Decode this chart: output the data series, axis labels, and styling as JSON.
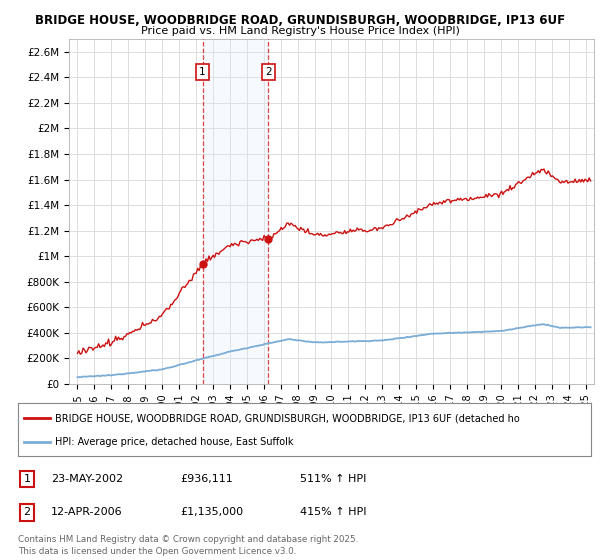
{
  "title_line1": "BRIDGE HOUSE, WOODBRIDGE ROAD, GRUNDISBURGH, WOODBRIDGE, IP13 6UF",
  "title_line2": "Price paid vs. HM Land Registry's House Price Index (HPI)",
  "ylabel_ticks": [
    "£0",
    "£200K",
    "£400K",
    "£600K",
    "£800K",
    "£1M",
    "£1.2M",
    "£1.4M",
    "£1.6M",
    "£1.8M",
    "£2M",
    "£2.2M",
    "£2.4M",
    "£2.6M"
  ],
  "ytick_values": [
    0,
    200000,
    400000,
    600000,
    800000,
    1000000,
    1200000,
    1400000,
    1600000,
    1800000,
    2000000,
    2200000,
    2400000,
    2600000
  ],
  "ylim": [
    0,
    2700000
  ],
  "xlim_start": 1994.5,
  "xlim_end": 2025.5,
  "xtick_years": [
    1995,
    1996,
    1997,
    1998,
    1999,
    2000,
    2001,
    2002,
    2003,
    2004,
    2005,
    2006,
    2007,
    2008,
    2009,
    2010,
    2011,
    2012,
    2013,
    2014,
    2015,
    2016,
    2017,
    2018,
    2019,
    2020,
    2021,
    2022,
    2023,
    2024,
    2025
  ],
  "sale1_x": 2002.389,
  "sale1_y": 936111,
  "sale1_label": "1",
  "sale2_x": 2006.278,
  "sale2_y": 1135000,
  "sale2_label": "2",
  "sale1_date": "23-MAY-2002",
  "sale1_price": "£936,111",
  "sale1_hpi": "511% ↑ HPI",
  "sale2_date": "12-APR-2006",
  "sale2_price": "£1,135,000",
  "sale2_hpi": "415% ↑ HPI",
  "hpi_line_color": "#7aacd6",
  "property_line_color": "#cc1111",
  "sale_marker_color": "#cc1111",
  "vline_color": "#dd4444",
  "shade_color": "#ddeeff",
  "grid_color": "#dddddd",
  "bg_color": "#ffffff",
  "legend_text1": "BRIDGE HOUSE, WOODBRIDGE ROAD, GRUNDISBURGH, WOODBRIDGE, IP13 6UF (detached ho",
  "legend_text2": "HPI: Average price, detached house, East Suffolk",
  "footer_text": "Contains HM Land Registry data © Crown copyright and database right 2025.\nThis data is licensed under the Open Government Licence v3.0."
}
